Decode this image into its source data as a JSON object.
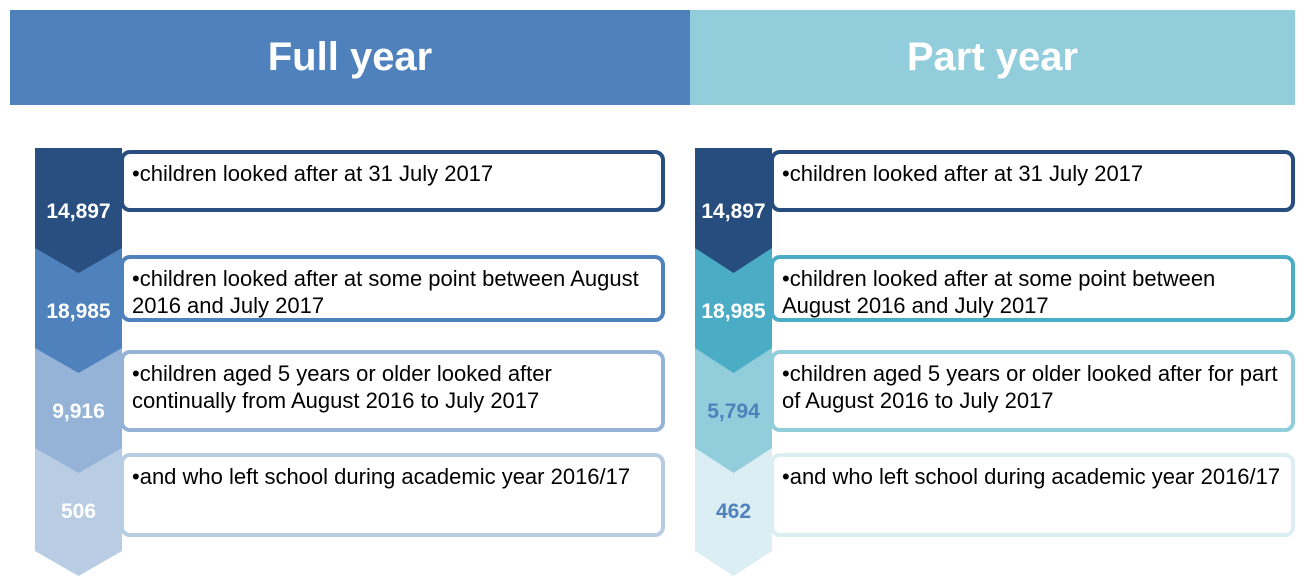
{
  "panels": [
    {
      "title": "Full year",
      "rows": [
        {
          "number": "14,897",
          "text": "•children looked after at 31 July 2017"
        },
        {
          "number": "18,985",
          "text": "•children looked after at some point between August 2016 and July 2017"
        },
        {
          "number": "9,916",
          "text": "•children aged 5 years or older looked after continually from August 2016 to July 2017"
        },
        {
          "number": "506",
          "text": "•and who left school during academic year 2016/17"
        }
      ]
    },
    {
      "title": "Part year",
      "rows": [
        {
          "number": "14,897",
          "text": "•children looked after at 31 July 2017"
        },
        {
          "number": "18,985",
          "text": "•children looked after at some point between August 2016 and July 2017"
        },
        {
          "number": "5,794",
          "text": "•children aged 5 years or older looked after for part of August 2016 to July 2017"
        },
        {
          "number": "462",
          "text": "•and who left school during academic year 2016/17"
        }
      ]
    }
  ]
}
